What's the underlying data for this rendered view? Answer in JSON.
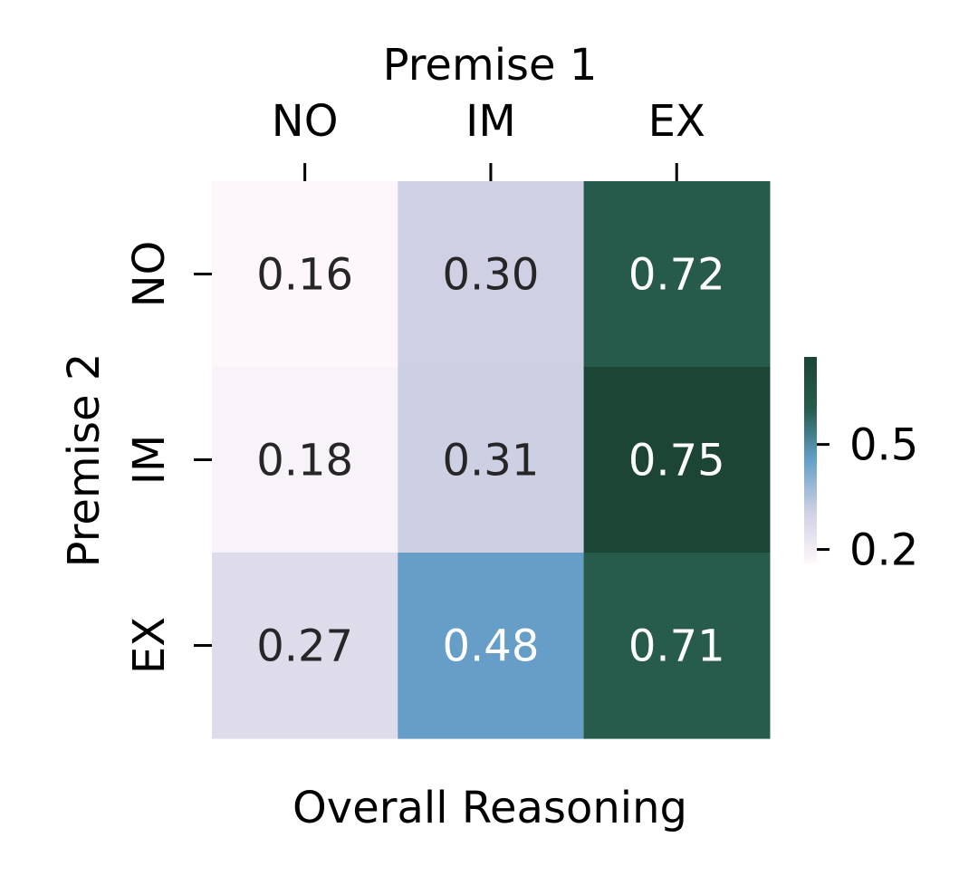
{
  "chart_data": {
    "type": "heatmap",
    "x_title": "Premise 1",
    "y_title": "Premise 2",
    "xlabel": "Overall Reasoning",
    "x_categories": [
      "NO",
      "IM",
      "EX"
    ],
    "y_categories": [
      "NO",
      "IM",
      "EX"
    ],
    "values": [
      [
        0.16,
        0.3,
        0.72
      ],
      [
        0.18,
        0.31,
        0.75
      ],
      [
        0.27,
        0.48,
        0.71
      ]
    ],
    "value_labels": [
      [
        "0.16",
        "0.30",
        "0.72"
      ],
      [
        "0.18",
        "0.31",
        "0.75"
      ],
      [
        "0.27",
        "0.48",
        "0.71"
      ]
    ],
    "colorbar": {
      "range": [
        0.16,
        0.75
      ],
      "ticks": [
        0.2,
        0.5
      ],
      "tick_labels": [
        "0.2",
        "0.5"
      ],
      "colormap": [
        "#fff7fb",
        "#cfd0e4",
        "#64a0c8",
        "#265c4c",
        "#1c4536"
      ]
    },
    "cell_colors": [
      [
        "#fdf7fb",
        "#cfd0e4",
        "#265a4a"
      ],
      [
        "#f8f3f8",
        "#cdcfe3",
        "#1c4536"
      ],
      [
        "#dedbea",
        "#669ec7",
        "#275b4b"
      ]
    ],
    "text_colors": [
      [
        "#262626",
        "#262626",
        "#ffffff"
      ],
      [
        "#262626",
        "#262626",
        "#ffffff"
      ],
      [
        "#262626",
        "#ffffff",
        "#ffffff"
      ]
    ]
  }
}
